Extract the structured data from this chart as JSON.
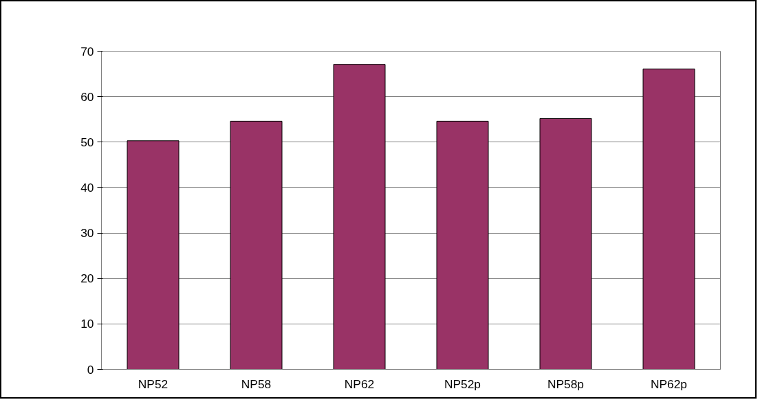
{
  "chart_data": {
    "type": "bar",
    "categories": [
      "NP52",
      "NP58",
      "NP62",
      "NP52p",
      "NP58p",
      "NP62p"
    ],
    "values": [
      50.3,
      54.6,
      67.1,
      54.6,
      55.2,
      66.1
    ],
    "color": "#993366",
    "ylim": [
      0,
      70
    ],
    "yticks": [
      0,
      10,
      20,
      30,
      40,
      50,
      60,
      70
    ],
    "grid": "y"
  }
}
